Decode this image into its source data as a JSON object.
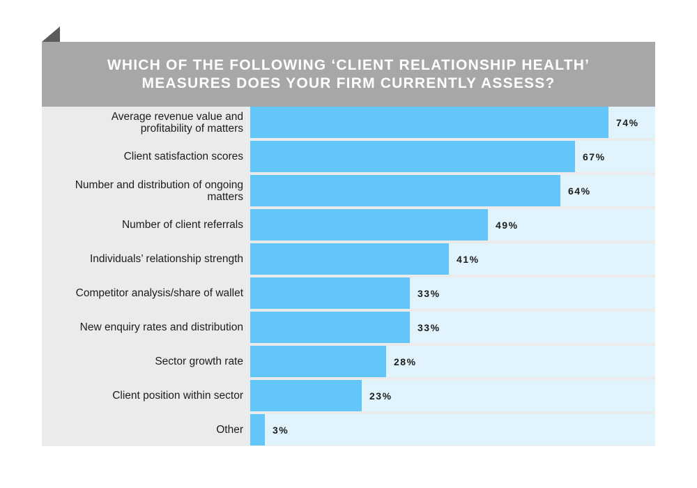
{
  "header": {
    "title_line1": "WHICH OF THE FOLLOWING ‘CLIENT RELATIONSHIP HEALTH’",
    "title_line2": "MEASURES DOES YOUR FIRM CURRENTLY ASSESS?"
  },
  "colors": {
    "header_bg": "#a6a7a8",
    "bar": "#63c6f8",
    "track": "#e1f4fd",
    "label_bg": "#ebebeb",
    "tab": "#5a5b5c"
  },
  "chart_data": {
    "type": "bar",
    "orientation": "horizontal",
    "title": "WHICH OF THE FOLLOWING ‘CLIENT RELATIONSHIP HEALTH’ MEASURES DOES YOUR FIRM CURRENTLY ASSESS?",
    "xlim": [
      0,
      100
    ],
    "grid": false,
    "categories": [
      [
        "Average revenue value and",
        "profitability of matters"
      ],
      [
        "Client satisfaction scores"
      ],
      [
        "Number and distribution of ongoing",
        "matters"
      ],
      [
        "Number of client referrals"
      ],
      [
        "Individuals’ relationship strength"
      ],
      [
        "Competitor analysis/share of wallet"
      ],
      [
        "New enquiry rates and distribution"
      ],
      [
        "Sector growth rate"
      ],
      [
        "Client position within sector"
      ],
      [
        "Other"
      ]
    ],
    "values": [
      74,
      67,
      64,
      49,
      41,
      33,
      33,
      28,
      23,
      3
    ],
    "value_labels": [
      "74%",
      "67%",
      "64%",
      "49%",
      "41%",
      "33%",
      "33%",
      "28%",
      "23%",
      "3%"
    ]
  }
}
